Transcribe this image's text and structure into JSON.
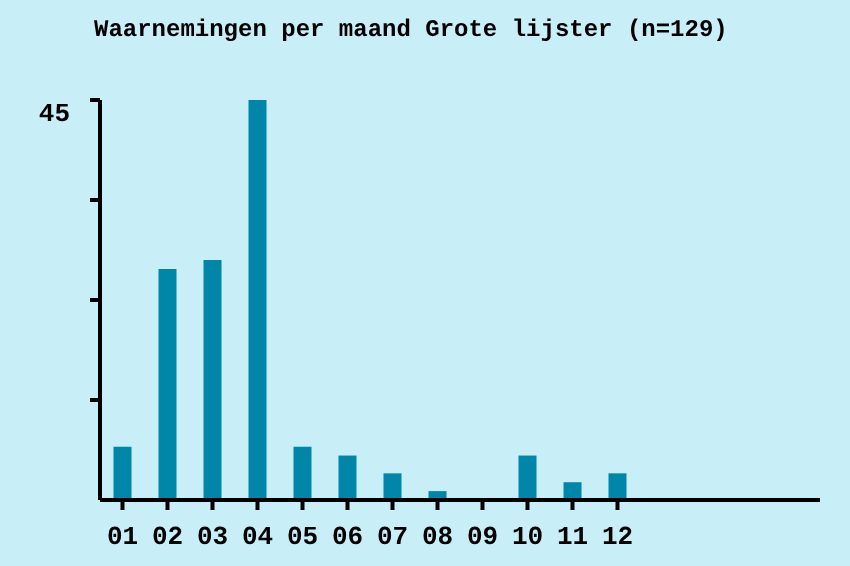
{
  "chart_data": {
    "type": "bar",
    "title": "Waarnemingen per maand Grote lijster (n=129)",
    "categories": [
      "01",
      "02",
      "03",
      "04",
      "05",
      "06",
      "07",
      "08",
      "09",
      "10",
      "11",
      "12"
    ],
    "values": [
      6,
      26,
      27,
      45,
      6,
      5,
      3,
      1,
      0,
      5,
      2,
      3
    ],
    "color": "#0086a8",
    "ylim": [
      0,
      45
    ],
    "yticks": [
      {
        "value": 11.25,
        "label": null
      },
      {
        "value": 22.5,
        "label": null
      },
      {
        "value": 33.75,
        "label": null
      },
      45
    ],
    "grid": false,
    "legend": false
  }
}
